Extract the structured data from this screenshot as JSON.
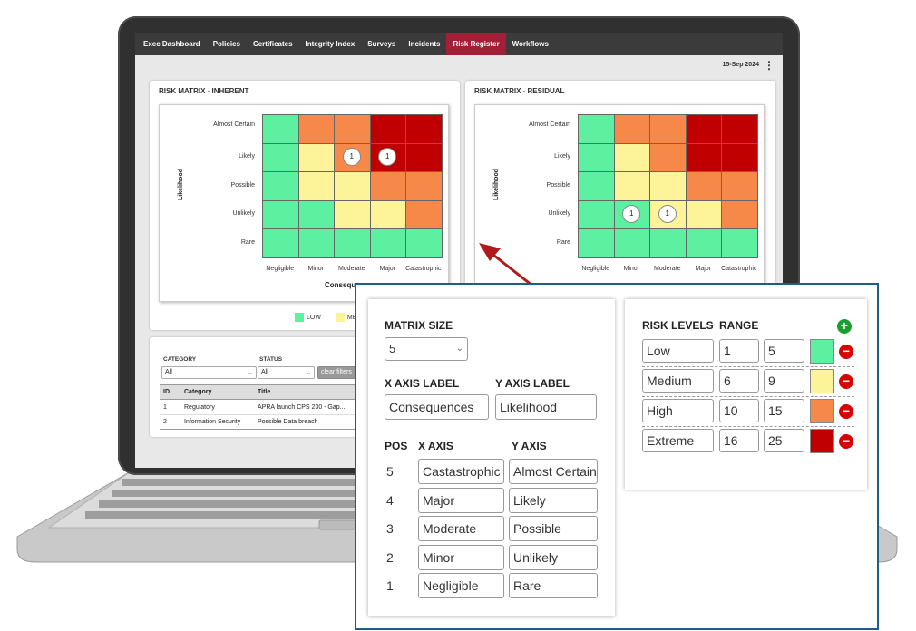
{
  "nav": {
    "tabs": [
      "Exec Dashboard",
      "Policies",
      "Certificates",
      "Integrity Index",
      "Surveys",
      "Incidents",
      "Risk Register",
      "Workflows"
    ],
    "active_index": 6
  },
  "header": {
    "date": "15-Sep 2024",
    "menu_icon": "kebab-icon"
  },
  "colors": {
    "low": "#5ef0a1",
    "medium": "#fdf49a",
    "high": "#f6894a",
    "extreme": "#c00000",
    "accent": "#a31f37",
    "popup_border": "#1d5d8c"
  },
  "matrices": [
    {
      "title": "RISK MATRIX  - INHERENT",
      "y_label": "Likelihood",
      "x_label": "Consequences",
      "x_label_visible": "Consequ",
      "rows": [
        "Almost Certain",
        "Likely",
        "Possible",
        "Unlikely",
        "Rare"
      ],
      "cols": [
        "Negligible",
        "Minor",
        "Moderate",
        "Major",
        "Catastrophic"
      ],
      "grid": [
        [
          "low",
          "high",
          "high",
          "extreme",
          "extreme"
        ],
        [
          "low",
          "medium",
          "high",
          "extreme",
          "extreme"
        ],
        [
          "low",
          "medium",
          "medium",
          "high",
          "high"
        ],
        [
          "low",
          "low",
          "medium",
          "medium",
          "high"
        ],
        [
          "low",
          "low",
          "low",
          "low",
          "low"
        ]
      ],
      "bubbles": [
        {
          "row": 1,
          "col": 2,
          "count": "1"
        },
        {
          "row": 1,
          "col": 3,
          "count": "1"
        }
      ]
    },
    {
      "title": "RISK MATRIX - RESIDUAL",
      "y_label": "Likelihood",
      "x_label": "",
      "x_label_visible": "",
      "rows": [
        "Almost Certain",
        "Likely",
        "Possible",
        "Unlikely",
        "Rare"
      ],
      "cols": [
        "Negligible",
        "Minor",
        "Moderate",
        "Major",
        "Catastrophic"
      ],
      "grid": [
        [
          "low",
          "high",
          "high",
          "extreme",
          "extreme"
        ],
        [
          "low",
          "medium",
          "high",
          "extreme",
          "extreme"
        ],
        [
          "low",
          "medium",
          "medium",
          "high",
          "high"
        ],
        [
          "low",
          "low",
          "medium",
          "medium",
          "high"
        ],
        [
          "low",
          "low",
          "low",
          "low",
          "low"
        ]
      ],
      "bubbles": [
        {
          "row": 3,
          "col": 1,
          "count": "1"
        },
        {
          "row": 3,
          "col": 2,
          "count": "1"
        }
      ]
    }
  ],
  "legend": [
    {
      "label": "LOW",
      "color": "#5ef0a1"
    },
    {
      "label": "MED",
      "color": "#fdf49a"
    }
  ],
  "filters": {
    "category_label": "CATEGORY",
    "category_value": "All",
    "status_label": "STATUS",
    "status_value": "All",
    "clear_label": "clear filters"
  },
  "table": {
    "headers": [
      "ID",
      "Category",
      "Title"
    ],
    "rows": [
      [
        "1",
        "Regulatory",
        "APRA launch CPS 230 - Gap..."
      ],
      [
        "2",
        "Information Security",
        "Possible Data breach"
      ]
    ]
  },
  "settings": {
    "matrix_size_label": "MATRIX SIZE",
    "matrix_size_value": "5",
    "x_axis_label_title": "X AXIS LABEL",
    "x_axis_label_value": "Consequences",
    "y_axis_label_title": "Y AXIS LABEL",
    "y_axis_label_value": "Likelihood",
    "pos_header": "POS",
    "x_header": "X AXIS",
    "y_header": "Y AXIS",
    "axes": [
      {
        "pos": "5",
        "x": "Castastrophic",
        "y": "Almost Certain"
      },
      {
        "pos": "4",
        "x": "Major",
        "y": "Likely"
      },
      {
        "pos": "3",
        "x": "Moderate",
        "y": "Possible"
      },
      {
        "pos": "2",
        "x": "Minor",
        "y": "Unlikely"
      },
      {
        "pos": "1",
        "x": "Negligible",
        "y": "Rare"
      }
    ]
  },
  "risk_levels": {
    "title": "RISK LEVELS",
    "range_title": "RANGE",
    "add_icon": "plus-circle-icon",
    "remove_icon": "minus-circle-icon",
    "levels": [
      {
        "name": "Low",
        "min": "1",
        "max": "5",
        "color": "#5ef0a1"
      },
      {
        "name": "Medium",
        "min": "6",
        "max": "9",
        "color": "#fdf49a"
      },
      {
        "name": "High",
        "min": "10",
        "max": "15",
        "color": "#f6894a"
      },
      {
        "name": "Extreme",
        "min": "16",
        "max": "25",
        "color": "#c00000"
      }
    ]
  }
}
